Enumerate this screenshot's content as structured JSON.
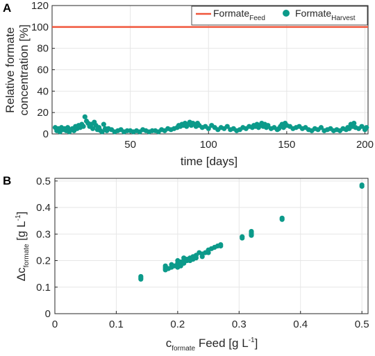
{
  "colors": {
    "feed": "#f0553a",
    "harvest": "#0c9a8a",
    "grid": "#e6e6e6",
    "axis": "#262626"
  },
  "panels": {
    "a": "A",
    "b": "B"
  },
  "chart_data": [
    {
      "type": "line+scatter",
      "panel": "A",
      "xlabel": "time [days]",
      "ylabel_lines": [
        "Relative formate",
        "concentration [%]"
      ],
      "xlim": [
        0,
        202
      ],
      "ylim": [
        0,
        120
      ],
      "xticks": [
        50,
        100,
        150,
        200
      ],
      "yticks": [
        0,
        20,
        40,
        60,
        80,
        100,
        120
      ],
      "grid": true,
      "legend_placement": "top-right",
      "legend": {
        "feed": {
          "base": "Formate",
          "sub": "Feed"
        },
        "harvest": {
          "base": "Formate",
          "sub": "Harvest"
        }
      },
      "series": [
        {
          "name": "Formate Feed",
          "kind": "line",
          "x": [
            0,
            202
          ],
          "y": [
            100,
            100
          ]
        },
        {
          "name": "Formate Harvest",
          "kind": "scatter",
          "x": [
            2,
            3,
            4,
            5,
            6,
            7,
            8,
            9,
            10,
            11,
            12,
            13,
            14,
            15,
            16,
            17,
            18,
            19,
            20,
            21,
            22,
            23,
            24,
            25,
            26,
            27,
            28,
            29,
            30,
            31,
            32,
            33,
            34,
            35,
            36,
            38,
            40,
            42,
            44,
            46,
            48,
            50,
            52,
            54,
            56,
            58,
            60,
            62,
            64,
            66,
            68,
            70,
            72,
            74,
            76,
            78,
            80,
            81,
            82,
            83,
            84,
            85,
            86,
            87,
            88,
            89,
            90,
            91,
            92,
            93,
            94,
            96,
            98,
            100,
            102,
            104,
            106,
            108,
            110,
            112,
            114,
            116,
            118,
            120,
            122,
            124,
            126,
            128,
            129,
            130,
            131,
            132,
            133,
            134,
            135,
            136,
            137,
            138,
            140,
            142,
            144,
            145,
            146,
            147,
            148,
            149,
            150,
            152,
            154,
            156,
            158,
            160,
            162,
            164,
            166,
            168,
            170,
            172,
            174,
            176,
            178,
            180,
            182,
            184,
            186,
            188,
            189,
            190,
            191,
            192,
            193,
            194,
            196,
            198,
            200,
            201
          ],
          "y": [
            6,
            3,
            5,
            2,
            6,
            4,
            5,
            3,
            6,
            2,
            4,
            5,
            3,
            7,
            5,
            8,
            6,
            9,
            7,
            16,
            12,
            10,
            7,
            9,
            5,
            11,
            8,
            4,
            6,
            3,
            2,
            9,
            5,
            3,
            5,
            4,
            2,
            3,
            4,
            2,
            3,
            3,
            2,
            3,
            2,
            4,
            3,
            2,
            3,
            3,
            2,
            4,
            3,
            5,
            4,
            5,
            6,
            8,
            7,
            9,
            8,
            10,
            7,
            9,
            11,
            8,
            10,
            9,
            7,
            10,
            8,
            6,
            7,
            5,
            8,
            6,
            4,
            6,
            5,
            7,
            4,
            5,
            3,
            4,
            6,
            5,
            7,
            6,
            8,
            7,
            9,
            6,
            8,
            10,
            7,
            9,
            6,
            8,
            5,
            6,
            4,
            5,
            7,
            9,
            6,
            10,
            8,
            7,
            5,
            6,
            7,
            5,
            6,
            4,
            3,
            5,
            4,
            6,
            3,
            4,
            5,
            3,
            4,
            3,
            5,
            4,
            6,
            5,
            9,
            7,
            10,
            6,
            5,
            7,
            4,
            6
          ]
        }
      ]
    },
    {
      "type": "scatter",
      "panel": "B",
      "xlabel": {
        "base": "c",
        "sub": "formate",
        "rest": " Feed [g L",
        "sup": "-1",
        "end": "]"
      },
      "ylabel": {
        "pre": "Δc",
        "sub": "formate",
        "rest": " [g L",
        "sup": "-1",
        "end": "]"
      },
      "xlim": [
        0,
        0.51
      ],
      "ylim": [
        0,
        0.51
      ],
      "xticks": [
        0,
        0.1,
        0.2,
        0.3,
        0.4,
        0.5
      ],
      "xtick_labels": [
        "0",
        "0.1",
        "0.2",
        "0.3",
        "0.4",
        "0.5"
      ],
      "yticks": [
        0,
        0.1,
        0.2,
        0.3,
        0.4,
        0.5
      ],
      "ytick_labels": [
        "0",
        "0.1",
        "0.2",
        "0.3",
        "0.4",
        "0.5"
      ],
      "grid": true,
      "series": [
        {
          "name": "",
          "x": [
            0.14,
            0.14,
            0.14,
            0.18,
            0.18,
            0.18,
            0.18,
            0.185,
            0.19,
            0.19,
            0.195,
            0.2,
            0.2,
            0.2,
            0.205,
            0.205,
            0.21,
            0.21,
            0.21,
            0.215,
            0.215,
            0.22,
            0.22,
            0.225,
            0.225,
            0.23,
            0.23,
            0.235,
            0.24,
            0.24,
            0.245,
            0.25,
            0.25,
            0.255,
            0.26,
            0.265,
            0.27,
            0.27,
            0.305,
            0.305,
            0.32,
            0.32,
            0.32,
            0.32,
            0.37,
            0.37,
            0.5,
            0.5
          ],
          "y": [
            0.13,
            0.135,
            0.14,
            0.165,
            0.17,
            0.175,
            0.18,
            0.17,
            0.185,
            0.175,
            0.18,
            0.19,
            0.175,
            0.2,
            0.195,
            0.18,
            0.2,
            0.19,
            0.21,
            0.2,
            0.205,
            0.21,
            0.2,
            0.215,
            0.205,
            0.22,
            0.21,
            0.23,
            0.225,
            0.215,
            0.23,
            0.24,
            0.23,
            0.245,
            0.25,
            0.255,
            0.255,
            0.26,
            0.285,
            0.29,
            0.295,
            0.305,
            0.31,
            0.3,
            0.355,
            0.36,
            0.48,
            0.485
          ]
        }
      ]
    }
  ]
}
